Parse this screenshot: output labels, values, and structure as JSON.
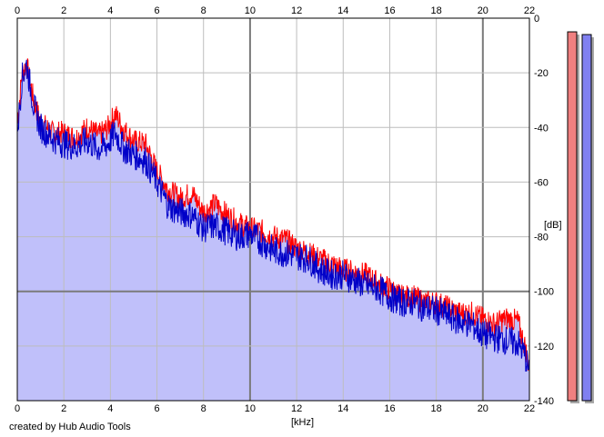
{
  "chart_data": {
    "type": "area",
    "title": "",
    "xlabel": "[kHz]",
    "ylabel": "[dB]",
    "xlim": [
      0,
      22
    ],
    "ylim": [
      -140,
      0
    ],
    "x_ticks": [
      "0",
      "2",
      "4",
      "6",
      "8",
      "10",
      "12",
      "14",
      "16",
      "18",
      "20",
      "22"
    ],
    "y_ticks": [
      "0",
      "-20",
      "-40",
      "-60",
      "-80",
      "-100",
      "-120",
      "-140"
    ],
    "grid": true,
    "legend": "none",
    "credit": "created by Hub Audio Tools",
    "colors": {
      "fill": "#c0c0fa",
      "red_series": "#ff0000",
      "blue_series": "#0000c8",
      "grid_minor": "#bdbdbd",
      "grid_major": "#7a7a7a",
      "meter_red": "#f08080",
      "meter_blue": "#8080f0"
    },
    "series": [
      {
        "color": "red",
        "x": [
          0.05,
          0.2,
          0.4,
          0.7,
          1.0,
          1.5,
          2.0,
          2.5,
          3.0,
          3.5,
          3.9,
          4.2,
          4.6,
          5.0,
          5.5,
          6.0,
          6.5,
          7.0,
          7.5,
          8.0,
          8.5,
          9.0,
          9.5,
          10.0,
          10.5,
          11.0,
          11.5,
          12.0,
          12.5,
          13.0,
          13.5,
          14.0,
          14.5,
          15.0,
          15.5,
          16.0,
          16.5,
          17.0,
          17.5,
          18.0,
          18.5,
          19.0,
          19.5,
          20.0,
          20.5,
          21.0,
          21.5,
          21.8,
          22.0
        ],
        "y": [
          -35,
          -20,
          -17,
          -30,
          -38,
          -42,
          -42,
          -44,
          -40,
          -43,
          -40,
          -35,
          -41,
          -45,
          -46,
          -56,
          -63,
          -66,
          -64,
          -71,
          -68,
          -72,
          -75,
          -77,
          -78,
          -80,
          -81,
          -84,
          -86,
          -88,
          -90,
          -92,
          -93,
          -94,
          -97,
          -99,
          -102,
          -102,
          -104,
          -104,
          -106,
          -108,
          -108,
          -110,
          -112,
          -110,
          -111,
          -120,
          -128
        ]
      },
      {
        "color": "blue",
        "x": [
          0.05,
          0.2,
          0.4,
          0.7,
          1.0,
          1.5,
          2.0,
          2.5,
          3.0,
          3.5,
          3.9,
          4.2,
          4.6,
          5.0,
          5.5,
          6.0,
          6.5,
          7.0,
          7.5,
          8.0,
          8.5,
          9.0,
          9.5,
          10.0,
          10.5,
          11.0,
          11.5,
          12.0,
          12.5,
          13.0,
          13.5,
          14.0,
          14.5,
          15.0,
          15.5,
          16.0,
          16.5,
          17.0,
          17.5,
          18.0,
          18.5,
          19.0,
          19.5,
          20.0,
          20.5,
          21.0,
          21.5,
          21.8,
          22.0
        ],
        "y": [
          -38,
          -22,
          -17,
          -32,
          -40,
          -44,
          -46,
          -47,
          -45,
          -48,
          -46,
          -42,
          -48,
          -50,
          -52,
          -60,
          -69,
          -71,
          -72,
          -77,
          -76,
          -78,
          -80,
          -79,
          -82,
          -85,
          -86,
          -87,
          -88,
          -92,
          -94,
          -94,
          -96,
          -98,
          -99,
          -102,
          -104,
          -104,
          -106,
          -107,
          -109,
          -111,
          -112,
          -116,
          -117,
          -118,
          -119,
          -123,
          -130
        ]
      }
    ],
    "meters": [
      {
        "color": "red",
        "level_db": -5
      },
      {
        "color": "blue",
        "level_db": -6
      }
    ]
  }
}
